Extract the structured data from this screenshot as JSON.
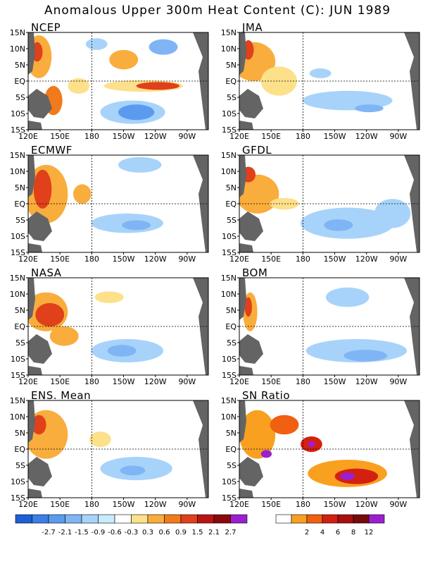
{
  "title": "Anomalous Upper 300m Heat Content (C): JUN 1989",
  "lat_labels": [
    "15N",
    "10N",
    "5N",
    "EQ",
    "5S",
    "10S",
    "15S"
  ],
  "lon_labels": [
    "120E",
    "150E",
    "180",
    "150W",
    "120W",
    "90W"
  ],
  "panels": [
    {
      "name": "NCEP"
    },
    {
      "name": "JMA"
    },
    {
      "name": "ECMWF"
    },
    {
      "name": "GFDL"
    },
    {
      "name": "NASA"
    },
    {
      "name": "BOM"
    },
    {
      "name": "ENS. Mean"
    },
    {
      "name": "SN Ratio"
    }
  ],
  "colorbar_anomaly": {
    "labels": [
      "-2.7",
      "-2.1",
      "-1.5",
      "-0.9",
      "-0.6",
      "-0.3",
      "0.3",
      "0.6",
      "0.9",
      "1.5",
      "2.1",
      "2.7"
    ],
    "colors": [
      "#1e5fd8",
      "#3b7fe6",
      "#5a9bf0",
      "#7fb5f5",
      "#a7d3fa",
      "#c8ecfb",
      "#ffffff",
      "#fde08a",
      "#f9ad3c",
      "#f27a1a",
      "#e0401a",
      "#b81414",
      "#8a0a0a",
      "#9b1fd0"
    ]
  },
  "colorbar_sn": {
    "labels": [
      "2",
      "4",
      "6",
      "8",
      "12"
    ],
    "colors": [
      "#ffffff",
      "#f9a020",
      "#f06010",
      "#d42010",
      "#a81010",
      "#780a0a",
      "#9b1fd0"
    ]
  },
  "colors": {
    "land": "#646464",
    "frame": "#000000"
  }
}
